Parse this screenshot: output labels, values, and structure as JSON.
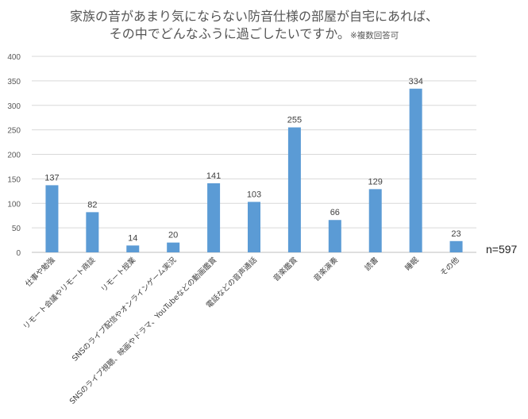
{
  "chart_data": {
    "type": "bar",
    "title": "家族の音があまり気にならない防音仕様の部屋が自宅にあれば、",
    "title_line2": "その中でどんなふうに過ごしたいですか。",
    "title_note": "※複数回答可",
    "categories": [
      "仕事や勉強",
      "リモート会議やリモート商談",
      "リモート授業",
      "SNSのライブ配信やオンラインゲーム実況",
      "SNSのライブ視聴、映画やドラマ、YouTubeなどの動画鑑賞",
      "電話などの音声通話",
      "音楽鑑賞",
      "音楽演奏",
      "読書",
      "睡眠",
      "その他"
    ],
    "values": [
      137,
      82,
      14,
      20,
      141,
      103,
      255,
      66,
      129,
      334,
      23
    ],
    "y_ticks": [
      0,
      50,
      100,
      150,
      200,
      250,
      300,
      350,
      400
    ],
    "ylim": [
      0,
      400
    ],
    "grid": true,
    "bar_color": "#5b9bd5",
    "sample_size": "n=597"
  }
}
